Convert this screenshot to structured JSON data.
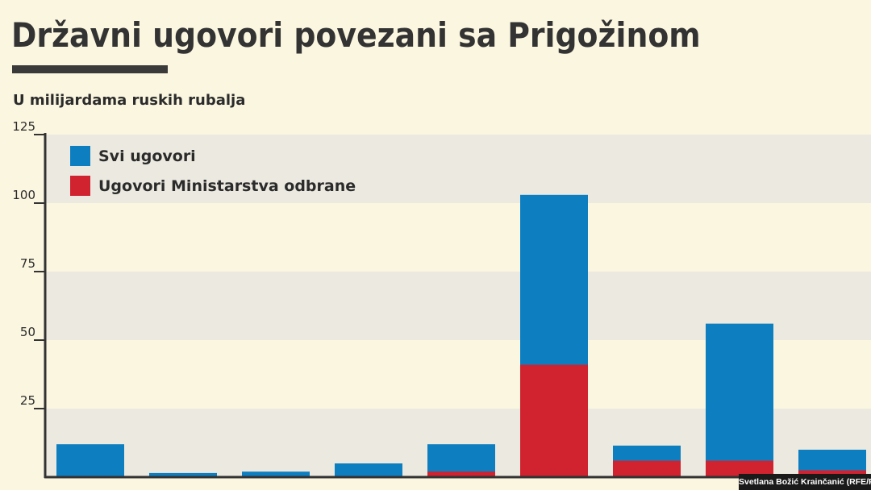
{
  "header": {
    "title": "Državni ugovori povezani sa Prigožinom",
    "subtitle": "U milijardama ruskih rubalja"
  },
  "credit": "Svetlana Božić Krainčanić (RFE/RL)",
  "colors": {
    "background": "#fbf6e0",
    "band": "#eceae0",
    "all_contracts": "#0d7fc1",
    "defense_contracts": "#d0222f",
    "axis": "#333333"
  },
  "chart_data": {
    "type": "bar",
    "stacked": false,
    "categories": [
      "",
      "",
      "",
      "",
      "",
      "",
      "",
      "",
      ""
    ],
    "series": [
      {
        "name": "Svi ugovori",
        "values": [
          12,
          1.5,
          2,
          5,
          12,
          103,
          11.5,
          56,
          10
        ]
      },
      {
        "name": "Ugovori Ministarstva odbrane",
        "values": [
          0,
          0,
          0,
          0,
          2,
          41,
          6,
          6,
          2.5
        ]
      }
    ],
    "yticks": [
      25,
      50,
      75,
      100,
      125
    ],
    "ylim": [
      0,
      125
    ],
    "grid": "alternating bands",
    "legend_position": "top-left"
  }
}
